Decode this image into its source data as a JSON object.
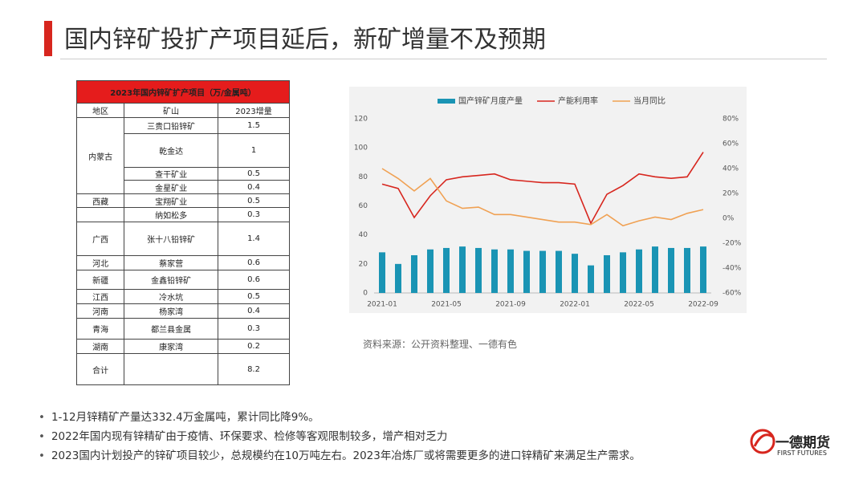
{
  "title": "国内锌矿投扩产项目延后，新矿增量不及预期",
  "table": {
    "caption": "2023年国内锌矿扩产项目（万/金属吨）",
    "header": [
      "地区",
      "矿山",
      "2023增量"
    ],
    "groups": [
      {
        "region": "内蒙古",
        "rows": [
          [
            "三贵口铅锌矿",
            1.5
          ],
          [
            "乾金达",
            1
          ],
          [
            "查干矿业",
            0.5
          ],
          [
            "金星矿业",
            0.4
          ]
        ]
      },
      {
        "region": "西藏",
        "rows": [
          [
            "宝翔矿业",
            0.5
          ]
        ]
      },
      {
        "region": null,
        "rows": [
          [
            "纳如松多",
            0.3
          ]
        ]
      },
      {
        "region": "广西",
        "rows": [
          [
            "张十八铅锌矿",
            1.4
          ]
        ]
      },
      {
        "region": "河北",
        "rows": [
          [
            "蔡家营",
            0.6
          ]
        ]
      },
      {
        "region": "新疆",
        "rows": [
          [
            "金鑫铅锌矿",
            0.6
          ]
        ]
      },
      {
        "region": "江西",
        "rows": [
          [
            "冷水坑",
            0.5
          ]
        ]
      },
      {
        "region": "河南",
        "rows": [
          [
            "杨家湾",
            0.4
          ]
        ]
      },
      {
        "region": "青海",
        "rows": [
          [
            "都兰县金属",
            0.3
          ]
        ]
      },
      {
        "region": "湖南",
        "rows": [
          [
            "康家湾",
            0.2
          ]
        ]
      }
    ],
    "total": {
      "label": "合计",
      "value": 8.2
    }
  },
  "chart_data": {
    "type": "bar",
    "categories": [
      "2021-01",
      null,
      null,
      null,
      "2021-05",
      null,
      null,
      null,
      "2021-09",
      null,
      null,
      null,
      "2022-01",
      null,
      null,
      null,
      "2022-05",
      null,
      null,
      null,
      "2022-09"
    ],
    "series": [
      {
        "name": "国产锌矿月度产量",
        "type": "bar",
        "color": "#1a94b4",
        "values": [
          28,
          20,
          26,
          30,
          31,
          32,
          31,
          30,
          30,
          29,
          29,
          29,
          27,
          19,
          26,
          28,
          30,
          32,
          31,
          31,
          32
        ]
      },
      {
        "name": "产能利用率",
        "type": "line",
        "color": "#d7261e",
        "values": [
          75,
          72,
          52,
          67,
          78,
          80,
          81,
          82,
          78,
          77,
          76,
          76,
          75,
          48,
          68,
          74,
          82,
          80,
          79,
          80,
          97
        ]
      },
      {
        "name": "当月同比",
        "type": "line",
        "axis": "y2",
        "color": "#f0a153",
        "values": [
          40,
          32,
          22,
          32,
          14,
          8,
          9,
          3,
          3,
          1,
          -1,
          -3,
          -3,
          -5,
          3,
          -6,
          -2,
          1,
          -1,
          4,
          7
        ]
      }
    ],
    "ylim": [
      0,
      120
    ],
    "yticks": [
      0,
      20,
      40,
      60,
      80,
      100,
      120
    ],
    "y2lim": [
      -60,
      80
    ],
    "y2ticks": [
      {
        "value": -60,
        "label": "-60%"
      },
      {
        "value": -40,
        "label": "-40%"
      },
      {
        "value": -20,
        "label": "-20%"
      },
      {
        "value": 0,
        "label": "0%"
      },
      {
        "value": 20,
        "label": "20%"
      },
      {
        "value": 40,
        "label": "40%"
      },
      {
        "value": 60,
        "label": "60%"
      },
      {
        "value": 80,
        "label": "80%"
      }
    ],
    "legend": "top"
  },
  "source": "资料来源：公开资料整理、一德有色",
  "bullets": [
    "1-12月锌精矿产量达332.4万金属吨，累计同比降9%。",
    "2022年国内现有锌精矿由于疫情、环保要求、检修等客观限制较多，增产相对乏力",
    "2023国内计划投产的锌矿项目较少，总规模约在10万吨左右。2023年冶炼厂或将需要更多的进口锌精矿来满足生产需求。"
  ],
  "logo": {
    "name": "一德期货",
    "subtitle": "FIRST FUTURES"
  }
}
